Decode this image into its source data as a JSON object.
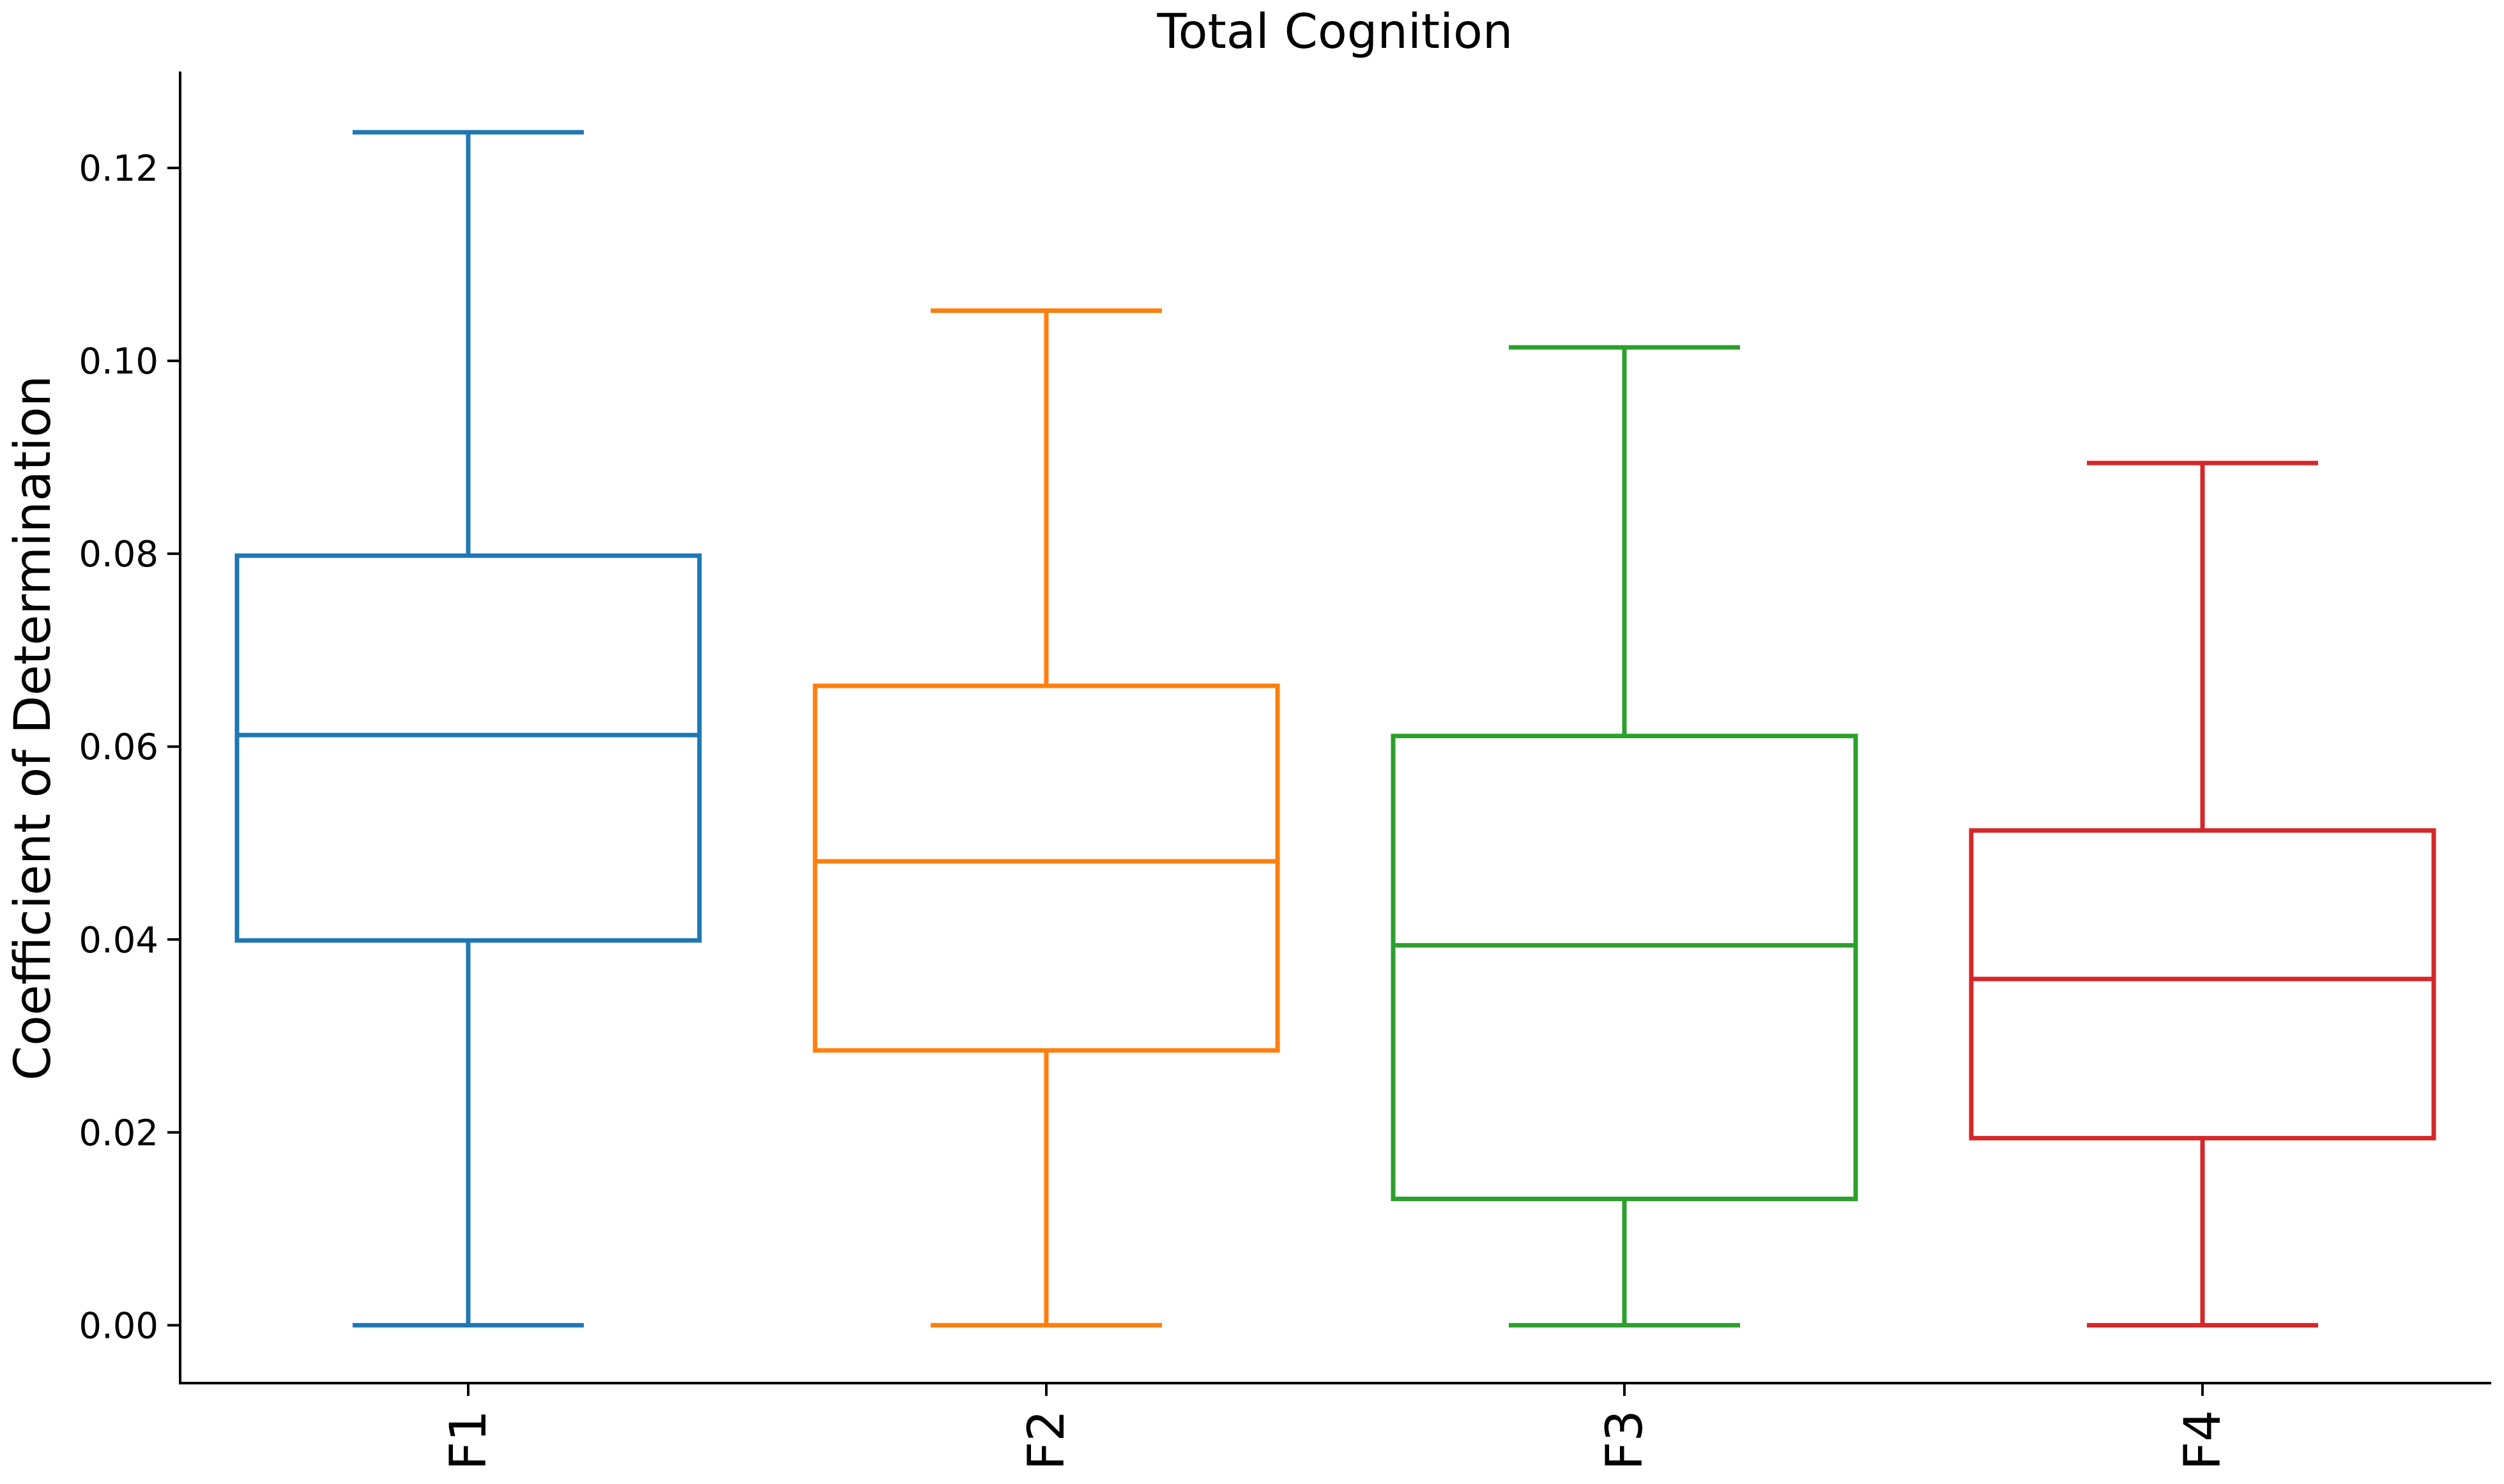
{
  "chart_data": {
    "type": "box",
    "title": "Total Cognition",
    "xlabel": "",
    "ylabel": "Coefficient of Determination",
    "ylim": [
      -0.006,
      0.13
    ],
    "yticks": [
      0.0,
      0.02,
      0.04,
      0.06,
      0.08,
      0.1,
      0.12
    ],
    "ytick_labels": [
      "0.00",
      "0.02",
      "0.04",
      "0.06",
      "0.08",
      "0.10",
      "0.12"
    ],
    "grid": false,
    "legend": "none",
    "categories": [
      "F1",
      "F2",
      "F3",
      "F4"
    ],
    "colors": [
      "#1f77b4",
      "#ff7f0e",
      "#2ca02c",
      "#d62728"
    ],
    "boxes": [
      {
        "category": "F1",
        "whisker_low": 0.0,
        "q1": 0.0399,
        "median": 0.0612,
        "q3": 0.0798,
        "whisker_high": 0.1237
      },
      {
        "category": "F2",
        "whisker_low": 0.0,
        "q1": 0.0285,
        "median": 0.0481,
        "q3": 0.0663,
        "whisker_high": 0.1052
      },
      {
        "category": "F3",
        "whisker_low": 0.0,
        "q1": 0.0131,
        "median": 0.0394,
        "q3": 0.0611,
        "whisker_high": 0.1014
      },
      {
        "category": "F4",
        "whisker_low": 0.0,
        "q1": 0.0194,
        "median": 0.0359,
        "q3": 0.0513,
        "whisker_high": 0.0894
      }
    ]
  }
}
